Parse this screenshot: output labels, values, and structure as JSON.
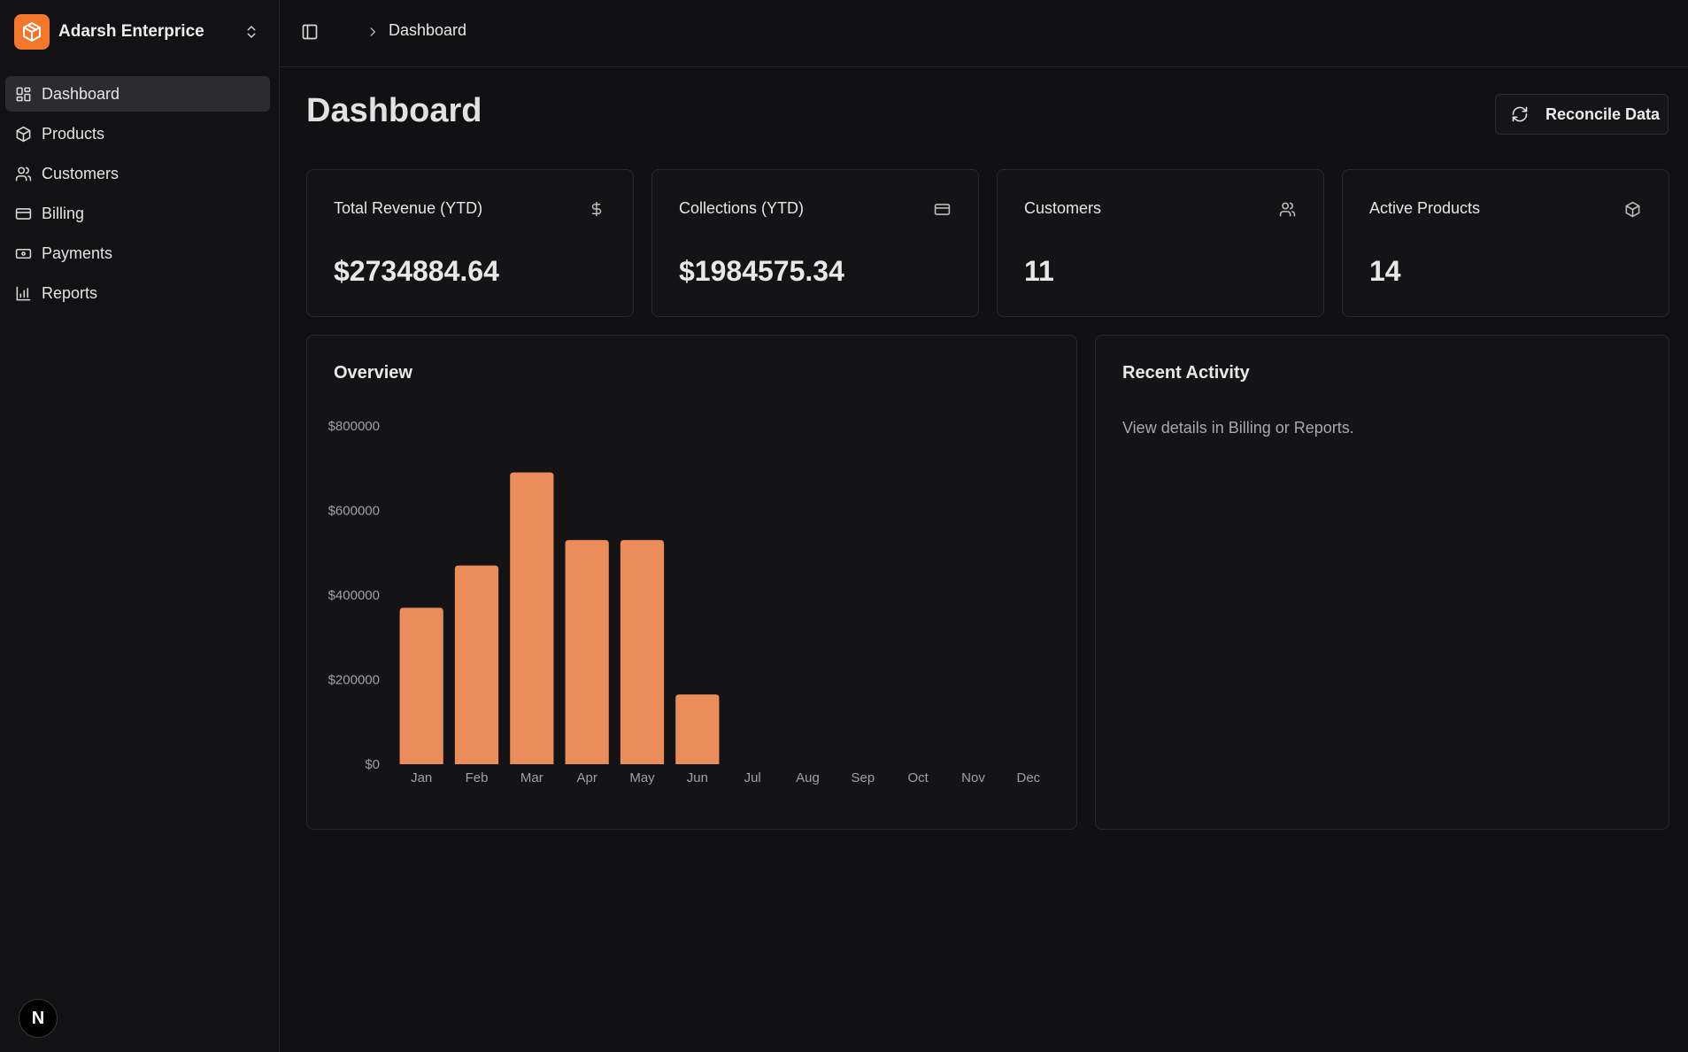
{
  "brand": {
    "name": "Adarsh Enterprice",
    "accent": "#f4762a"
  },
  "sidebar": {
    "items": [
      {
        "label": "Dashboard",
        "icon": "dashboard-grid-icon",
        "active": true
      },
      {
        "label": "Products",
        "icon": "package-icon",
        "active": false
      },
      {
        "label": "Customers",
        "icon": "users-icon",
        "active": false
      },
      {
        "label": "Billing",
        "icon": "credit-card-icon",
        "active": false
      },
      {
        "label": "Payments",
        "icon": "banknote-icon",
        "active": false
      },
      {
        "label": "Reports",
        "icon": "bar-chart-icon",
        "active": false
      }
    ],
    "badge": "N"
  },
  "topbar": {
    "breadcrumb": "Dashboard"
  },
  "page": {
    "title": "Dashboard",
    "reconcile_label": "Reconcile Data"
  },
  "stats": [
    {
      "label": "Total Revenue (YTD)",
      "value": "$2734884.64",
      "icon": "dollar-icon"
    },
    {
      "label": "Collections (YTD)",
      "value": "$1984575.34",
      "icon": "credit-card-icon"
    },
    {
      "label": "Customers",
      "value": "11",
      "icon": "users-icon"
    },
    {
      "label": "Active Products",
      "value": "14",
      "icon": "package-icon"
    }
  ],
  "overview": {
    "title": "Overview"
  },
  "activity": {
    "title": "Recent Activity",
    "text": "View details in Billing or Reports."
  },
  "chart_data": {
    "type": "bar",
    "title": "Overview",
    "categories": [
      "Jan",
      "Feb",
      "Mar",
      "Apr",
      "May",
      "Jun",
      "Jul",
      "Aug",
      "Sep",
      "Oct",
      "Nov",
      "Dec"
    ],
    "values": [
      370000,
      470000,
      690000,
      530000,
      530000,
      165000,
      0,
      0,
      0,
      0,
      0,
      0
    ],
    "yticks": [
      0,
      200000,
      400000,
      600000,
      800000
    ],
    "ytick_labels": [
      "$0",
      "$200000",
      "$400000",
      "$600000",
      "$800000"
    ],
    "ylim": [
      0,
      800000
    ],
    "bar_color": "#ea8d5a",
    "grid": false
  }
}
